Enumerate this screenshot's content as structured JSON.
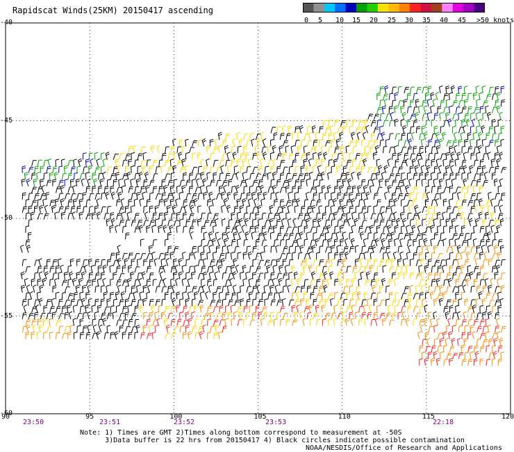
{
  "title": "Rapidscat Winds(25KM) 20150417 ascending",
  "legend": {
    "colors": [
      "#555555",
      "#909090",
      "#00c8ff",
      "#0070ff",
      "#0000c0",
      "#00a000",
      "#22d000",
      "#f5e100",
      "#ffb800",
      "#ff7f00",
      "#ff2020",
      "#d01040",
      "#a04020",
      "#ff80ff",
      "#e000e0",
      "#a000c0",
      "#4b0082"
    ],
    "labels": [
      "0",
      "5",
      "10",
      "15",
      "20",
      "25",
      "30",
      "35",
      "40",
      "45",
      ">50 knots"
    ]
  },
  "map": {
    "x_axis": {
      "ticks": [
        "90",
        "95",
        "100",
        "105",
        "110",
        "115",
        "120"
      ],
      "range": [
        90,
        120
      ]
    },
    "y_axis": {
      "ticks": [
        "-40",
        "-45",
        "-50",
        "-55",
        "-60"
      ],
      "range": [
        -60,
        -40
      ]
    },
    "times": [
      "23:50",
      "23:51",
      "23:52",
      "23:53",
      "22:18"
    ],
    "wind_colors": {
      "calm": "#000000",
      "light": "#00a000",
      "moderate": "#ffd700",
      "strong": "#ff8c00",
      "gale": "#ff2020",
      "blue": "#0000c0"
    }
  },
  "notes": [
    "Note: 1) Times are GMT 2)Times along bottom correspond to measurement at -50S",
    "      3)Data buffer is 22 hrs from 20150417 4) Black circles indicate possible contamination"
  ],
  "credit": "NOAA/NESDIS/Office of Research and Applications"
}
